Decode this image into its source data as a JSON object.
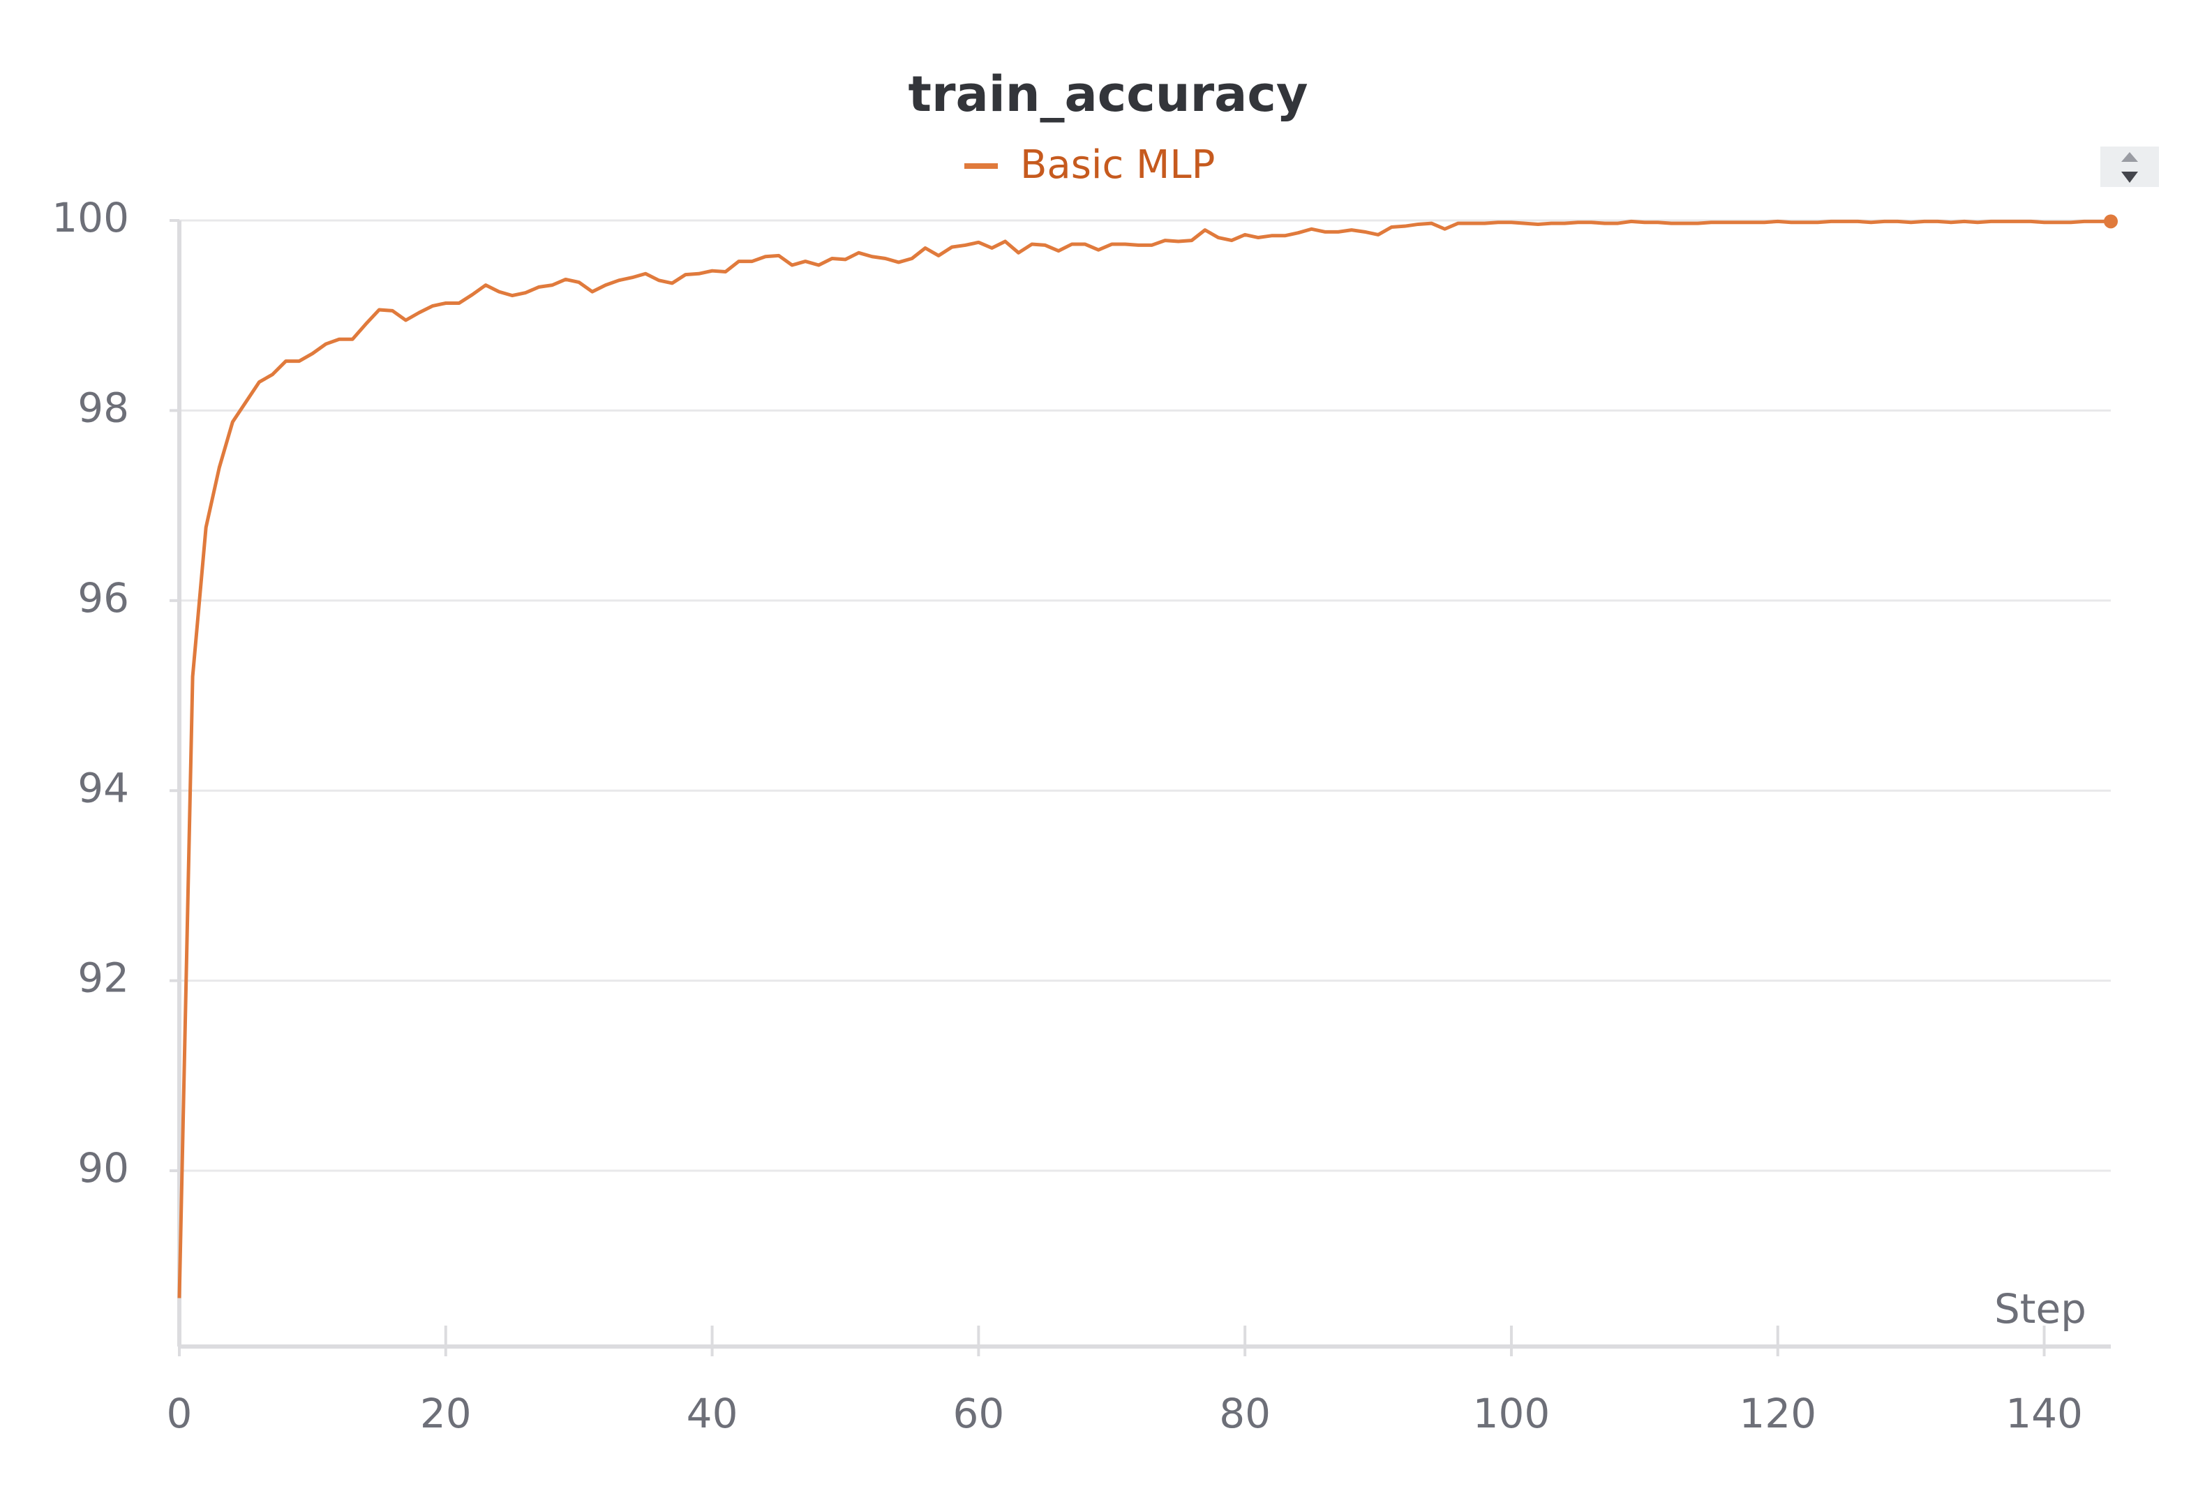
{
  "chart_data": {
    "type": "line",
    "title": "train_accuracy",
    "xlabel": "Step",
    "x": [
      0,
      1,
      2,
      3,
      4,
      5,
      6,
      7,
      8,
      9,
      10,
      11,
      12,
      13,
      14,
      15,
      16,
      17,
      18,
      19,
      20,
      21,
      22,
      23,
      24,
      25,
      26,
      27,
      28,
      29,
      30,
      31,
      32,
      33,
      34,
      35,
      36,
      37,
      38,
      39,
      40,
      41,
      42,
      43,
      44,
      45,
      46,
      47,
      48,
      49,
      50,
      51,
      52,
      53,
      54,
      55,
      56,
      57,
      58,
      59,
      60,
      61,
      62,
      63,
      64,
      65,
      66,
      67,
      68,
      69,
      70,
      71,
      72,
      73,
      74,
      75,
      76,
      77,
      78,
      79,
      80,
      81,
      82,
      83,
      84,
      85,
      86,
      87,
      88,
      89,
      90,
      91,
      92,
      93,
      94,
      95,
      96,
      97,
      98,
      99,
      100,
      101,
      102,
      103,
      104,
      105,
      106,
      107,
      108,
      109,
      110,
      111,
      112,
      113,
      114,
      115,
      116,
      117,
      118,
      119,
      120,
      121,
      122,
      123,
      124,
      125,
      126,
      127,
      128,
      129,
      130,
      131,
      132,
      133,
      134,
      135,
      136,
      137,
      138,
      139,
      140,
      141,
      142,
      143,
      144,
      145
    ],
    "series": [
      {
        "name": "Basic MLP",
        "color": "#e07a3c",
        "values": [
          88.66,
          95.2,
          96.77,
          97.4,
          97.88,
          98.09,
          98.3,
          98.38,
          98.52,
          98.52,
          98.6,
          98.7,
          98.75,
          98.75,
          98.91,
          99.06,
          99.05,
          98.95,
          99.03,
          99.1,
          99.13,
          99.13,
          99.22,
          99.32,
          99.25,
          99.21,
          99.24,
          99.3,
          99.32,
          99.38,
          99.35,
          99.25,
          99.32,
          99.37,
          99.4,
          99.44,
          99.37,
          99.34,
          99.43,
          99.44,
          99.47,
          99.46,
          99.57,
          99.57,
          99.62,
          99.63,
          99.53,
          99.57,
          99.53,
          99.6,
          99.59,
          99.66,
          99.62,
          99.6,
          99.56,
          99.6,
          99.71,
          99.63,
          99.72,
          99.74,
          99.77,
          99.71,
          99.78,
          99.66,
          99.75,
          99.74,
          99.68,
          99.75,
          99.75,
          99.69,
          99.75,
          99.75,
          99.74,
          99.74,
          99.79,
          99.78,
          99.79,
          99.9,
          99.82,
          99.79,
          99.85,
          99.82,
          99.84,
          99.84,
          99.87,
          99.91,
          99.88,
          99.88,
          99.9,
          99.88,
          99.85,
          99.93,
          99.94,
          99.96,
          99.97,
          99.91,
          99.97,
          99.97,
          99.97,
          99.98,
          99.98,
          99.97,
          99.96,
          99.97,
          99.97,
          99.98,
          99.98,
          99.97,
          99.97,
          99.99,
          99.98,
          99.98,
          99.97,
          99.97,
          99.97,
          99.98,
          99.98,
          99.98,
          99.98,
          99.98,
          99.99,
          99.98,
          99.98,
          99.98,
          99.99,
          99.99,
          99.99,
          99.98,
          99.99,
          99.99,
          99.98,
          99.99,
          99.99,
          99.98,
          99.99,
          99.98,
          99.99,
          99.99,
          99.99,
          99.99,
          99.98,
          99.98,
          99.98,
          99.99,
          99.99,
          99.99
        ]
      }
    ],
    "xlim": [
      0,
      145
    ],
    "xticks": [
      0,
      20,
      40,
      60,
      80,
      100,
      120,
      140
    ],
    "ylim": [
      88.15,
      100
    ],
    "yticks": [
      90,
      92,
      94,
      96,
      98,
      100
    ],
    "grid": true
  }
}
